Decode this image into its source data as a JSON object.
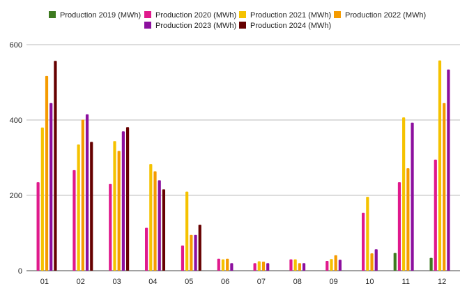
{
  "chart_data": {
    "type": "bar",
    "categories": [
      "01",
      "02",
      "03",
      "04",
      "05",
      "06",
      "07",
      "08",
      "09",
      "10",
      "11",
      "12"
    ],
    "ylim": [
      0,
      600
    ],
    "yticks": [
      0,
      200,
      400,
      600
    ],
    "grid": true,
    "legend_position": "top",
    "series": [
      {
        "name": "Production 2019 (MWh)",
        "color": "#3d7a1f",
        "values": [
          null,
          null,
          null,
          null,
          null,
          null,
          null,
          null,
          null,
          null,
          47,
          34
        ]
      },
      {
        "name": "Production 2020 (MWh)",
        "color": "#e0198c",
        "values": [
          235,
          267,
          230,
          114,
          67,
          32,
          20,
          30,
          26,
          154,
          235,
          295
        ]
      },
      {
        "name": "Production 2021 (MWh)",
        "color": "#f5c200",
        "values": [
          380,
          335,
          344,
          283,
          210,
          30,
          25,
          30,
          31,
          196,
          407,
          558
        ]
      },
      {
        "name": "Production 2022 (MWh)",
        "color": "#f59b00",
        "values": [
          517,
          401,
          318,
          264,
          95,
          32,
          24,
          20,
          41,
          46,
          272,
          445
        ]
      },
      {
        "name": "Production 2023 (MWh)",
        "color": "#8c0f9e",
        "values": [
          445,
          415,
          370,
          240,
          95,
          20,
          20,
          20,
          29,
          57,
          393,
          534
        ]
      },
      {
        "name": "Production 2024 (MWh)",
        "color": "#660000",
        "values": [
          557,
          342,
          381,
          216,
          122,
          null,
          null,
          null,
          null,
          null,
          null,
          null
        ]
      }
    ]
  }
}
